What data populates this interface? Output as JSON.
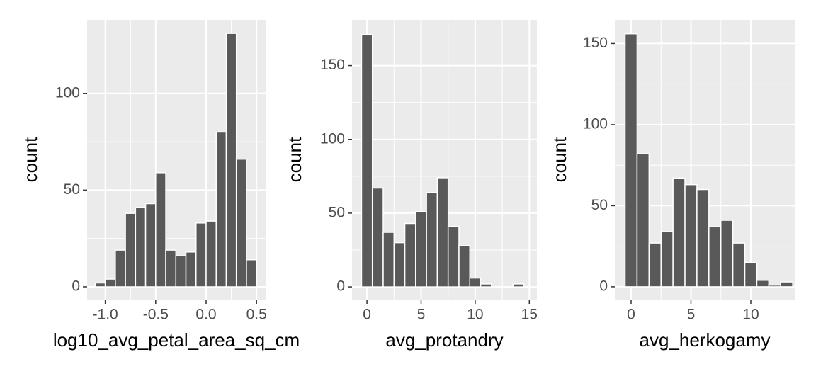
{
  "chart_data": [
    {
      "type": "histogram",
      "x_label": "log10_avg_petal_area_sq_cm",
      "y_label": "count",
      "bins": [
        -1.1,
        -1.0,
        -0.9,
        -0.8,
        -0.7,
        -0.6,
        -0.5,
        -0.4,
        -0.3,
        -0.2,
        -0.1,
        0.0,
        0.1,
        0.2,
        0.3,
        0.4,
        0.5
      ],
      "values": [
        2,
        4,
        19,
        38,
        41,
        43,
        59,
        19,
        16,
        18,
        33,
        34,
        80,
        131,
        66,
        14
      ],
      "color": "#595959",
      "xlim": [
        -1.18,
        0.59
      ],
      "ylim": [
        -6.6,
        138
      ],
      "xticks": [
        {
          "value": -1,
          "label": "-1.0"
        },
        -0.5,
        {
          "value": 0,
          "label": "0.0"
        },
        0.5
      ],
      "yticks": [
        0,
        50,
        100
      ],
      "grid": true
    },
    {
      "type": "histogram",
      "x_label": "avg_protandry",
      "y_label": "count",
      "bins": [
        -0.5,
        0.5,
        1.5,
        2.5,
        3.5,
        4.5,
        5.5,
        6.5,
        7.5,
        8.5,
        9.5,
        10.5,
        11.5,
        12.5,
        13.5,
        14.5
      ],
      "values": [
        171,
        67,
        37,
        30,
        43,
        51,
        64,
        74,
        41,
        28,
        6,
        2,
        0,
        0,
        2
      ],
      "color": "#595959",
      "xlim": [
        -1.38,
        15.7
      ],
      "ylim": [
        -8.6,
        181
      ],
      "xticks": [
        0,
        5,
        10,
        15
      ],
      "yticks": [
        0,
        50,
        100,
        150
      ],
      "grid": true
    },
    {
      "type": "histogram",
      "x_label": "avg_herkogamy",
      "y_label": "count",
      "bins": [
        -0.5,
        0.5,
        1.5,
        2.5,
        3.5,
        4.5,
        5.5,
        6.5,
        7.5,
        8.5,
        9.5,
        10.5,
        11.5,
        12.5,
        13.5
      ],
      "values": [
        156,
        82,
        27,
        34,
        67,
        63,
        60,
        37,
        41,
        27,
        15,
        4,
        1,
        3
      ],
      "color": "#595959",
      "xlim": [
        -1.36,
        13.67
      ],
      "ylim": [
        -7.9,
        164.6
      ],
      "xticks": [
        0,
        5,
        10
      ],
      "yticks": [
        0,
        50,
        100,
        150
      ],
      "grid": true
    }
  ]
}
